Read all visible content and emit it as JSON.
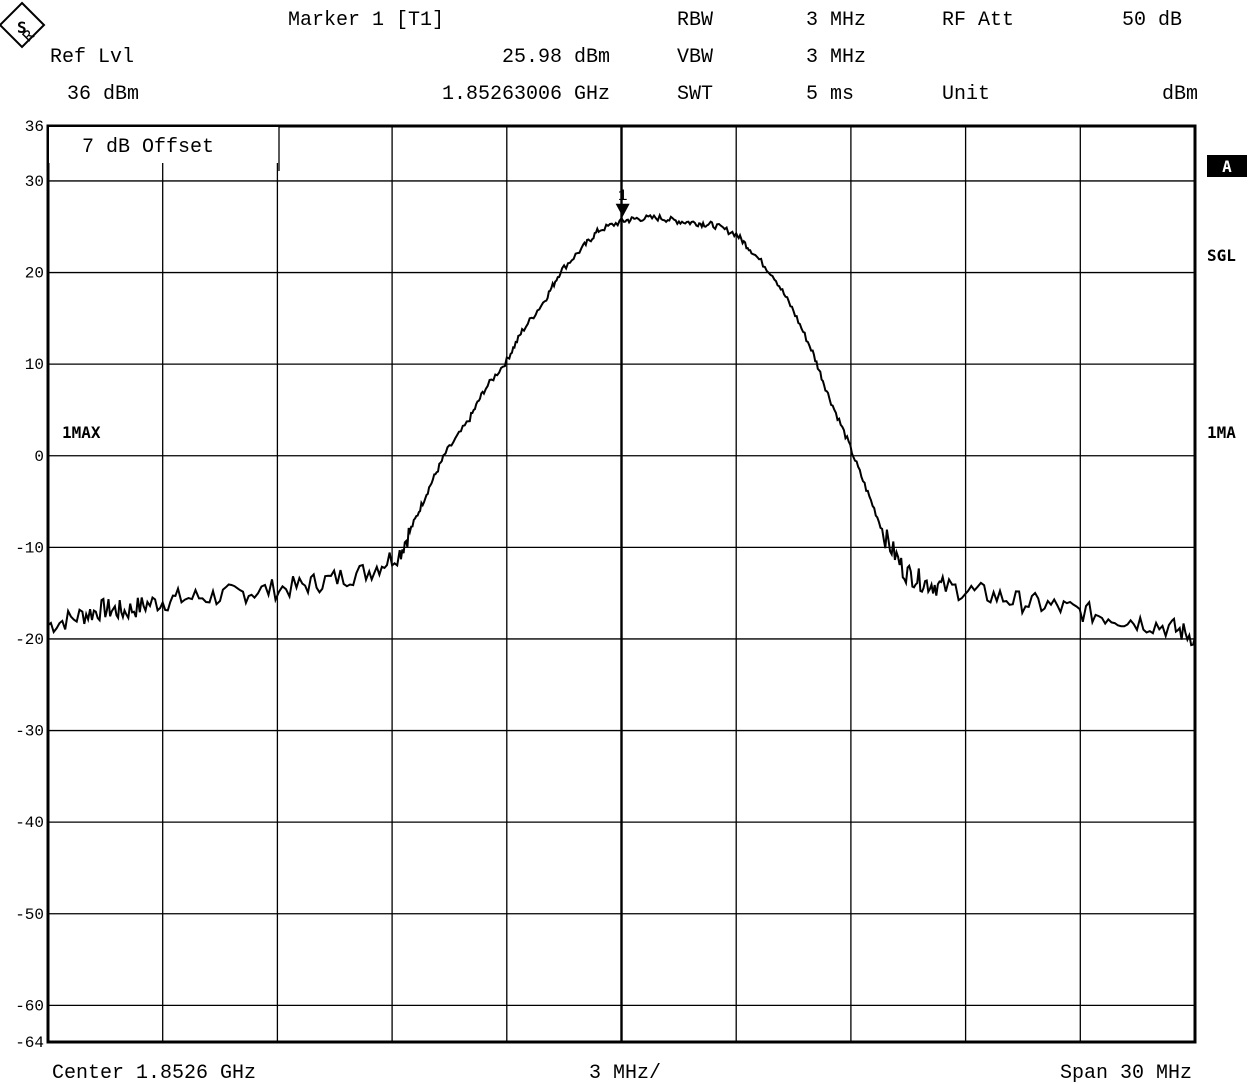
{
  "header": {
    "ref_lvl_label": "Ref Lvl",
    "ref_lvl_value": "36 dBm",
    "marker_label": "Marker 1 [T1]",
    "marker_level": "25.98 dBm",
    "marker_freq": "1.85263006 GHz",
    "rbw_label": "RBW",
    "rbw_value": "3 MHz",
    "vbw_label": "VBW",
    "vbw_value": "3 MHz",
    "swt_label": "SWT",
    "swt_value": "5 ms",
    "rfatt_label": "RF Att",
    "rfatt_value": "50 dB",
    "unit_label": "Unit",
    "unit_value": "dBm"
  },
  "annotations": {
    "offset": "7 dB Offset",
    "trace_left": "1MAX",
    "trace_right": "1MA",
    "side_a": "A",
    "side_sgl": "SGL",
    "marker_number": "1"
  },
  "footer": {
    "center": "Center 1.8526 GHz",
    "per_div": "3 MHz/",
    "span": "Span 30 MHz"
  },
  "chart_data": {
    "type": "line",
    "xlabel": "",
    "ylabel": "",
    "x_unit": "MHz",
    "y_unit": "dBm",
    "xlim": [
      1837.6,
      1867.6
    ],
    "ylim": [
      -64,
      36
    ],
    "y_ticks": [
      "36",
      "30",
      "20",
      "10",
      "0",
      "-10",
      "-20",
      "-30",
      "-40",
      "-50",
      "-60",
      "-64"
    ],
    "grid": true,
    "series": [
      {
        "name": "1MAX",
        "x": [
          1837.6,
          1838.5,
          1839.1,
          1839.6,
          1840.2,
          1841.0,
          1842.1,
          1843.0,
          1844.1,
          1845.0,
          1846.0,
          1846.8,
          1847.2,
          1847.6,
          1848.0,
          1848.6,
          1849.0,
          1849.6,
          1850.0,
          1850.6,
          1851.0,
          1851.6,
          1852.0,
          1852.6,
          1853.0,
          1853.6,
          1854.1,
          1854.6,
          1855.0,
          1855.6,
          1856.0,
          1856.6,
          1857.1,
          1857.6,
          1858.0,
          1858.5,
          1859.0,
          1859.5,
          1860.0,
          1860.5,
          1861.0,
          1862.0,
          1863.0,
          1864.0,
          1865.0,
          1866.0,
          1867.0,
          1867.6
        ],
        "y": [
          -18.5,
          -17.4,
          -16.7,
          -17.0,
          -16.2,
          -15.6,
          -15.3,
          -14.8,
          -14.3,
          -13.5,
          -12.6,
          -10.6,
          -7.0,
          -3.2,
          0.3,
          3.8,
          7.1,
          10.4,
          13.6,
          17.0,
          20.1,
          22.8,
          24.6,
          25.6,
          25.9,
          25.98,
          25.6,
          25.4,
          25.2,
          24.2,
          22.4,
          19.5,
          15.8,
          11.3,
          6.7,
          1.8,
          -3.6,
          -8.9,
          -12.6,
          -13.8,
          -14.3,
          -15.0,
          -15.9,
          -16.5,
          -17.3,
          -18.0,
          -18.8,
          -19.8
        ]
      }
    ],
    "marker": {
      "x": 1852.63006,
      "y": 25.98
    }
  }
}
